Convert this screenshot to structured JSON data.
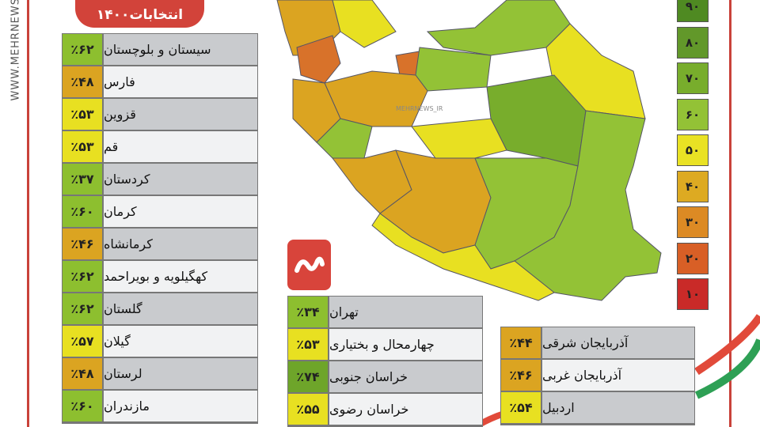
{
  "watermark": "WWW.MEHRNEWS",
  "map_watermark": "MEHRNEWS_IR",
  "title": "انتخابات۱۴۰۰",
  "legend": [
    {
      "label": "۹۰",
      "color": "#4f8a22"
    },
    {
      "label": "۸۰",
      "color": "#62982a"
    },
    {
      "label": "۷۰",
      "color": "#78ad2c"
    },
    {
      "label": "۶۰",
      "color": "#93c236"
    },
    {
      "label": "۵۰",
      "color": "#e9e224"
    },
    {
      "label": "۴۰",
      "color": "#ddaa22"
    },
    {
      "label": "۳۰",
      "color": "#dc8a24"
    },
    {
      "label": "۲۰",
      "color": "#d85f26"
    },
    {
      "label": "۱۰",
      "color": "#c92a28"
    }
  ],
  "left_table": [
    {
      "name": "سیستان و بلوچستان",
      "value": "٪۶۲",
      "color": "#8dbf2f"
    },
    {
      "name": "فارس",
      "value": "٪۴۸",
      "color": "#dba421"
    },
    {
      "name": "قزوین",
      "value": "٪۵۳",
      "color": "#e8e021"
    },
    {
      "name": "قم",
      "value": "٪۵۳",
      "color": "#e8e021"
    },
    {
      "name": "کردستان",
      "value": "٪۳۷",
      "color": "#8dbf2f"
    },
    {
      "name": "کرمان",
      "value": "٪۶۰",
      "color": "#8dbf2f"
    },
    {
      "name": "کرمانشاه",
      "value": "٪۴۶",
      "color": "#dba421"
    },
    {
      "name": "کهگیلویه و بویراحمد",
      "value": "٪۶۲",
      "color": "#8dbf2f"
    },
    {
      "name": "گلستان",
      "value": "٪۶۲",
      "color": "#8dbf2f"
    },
    {
      "name": "گیلان",
      "value": "٪۵۷",
      "color": "#e8e021"
    },
    {
      "name": "لرستان",
      "value": "٪۴۸",
      "color": "#dba421"
    },
    {
      "name": "مازندران",
      "value": "٪۶۰",
      "color": "#8dbf2f"
    }
  ],
  "middle_table": [
    {
      "name": "تهران",
      "value": "٪۳۴",
      "color": "#8dbf2f"
    },
    {
      "name": "چهارمحال و بختیاری",
      "value": "٪۵۳",
      "color": "#e8e021"
    },
    {
      "name": "خراسان جنوبی",
      "value": "٪۷۴",
      "color": "#6ea52a"
    },
    {
      "name": "خراسان رضوی",
      "value": "٪۵۵",
      "color": "#e8e021"
    }
  ],
  "right_table": [
    {
      "name": "آذربایجان شرقی",
      "value": "٪۴۴",
      "color": "#dba421"
    },
    {
      "name": "آذربایجان غربی",
      "value": "٪۴۶",
      "color": "#dba421"
    },
    {
      "name": "اردبیل",
      "value": "٪۵۴",
      "color": "#e8e021"
    }
  ]
}
